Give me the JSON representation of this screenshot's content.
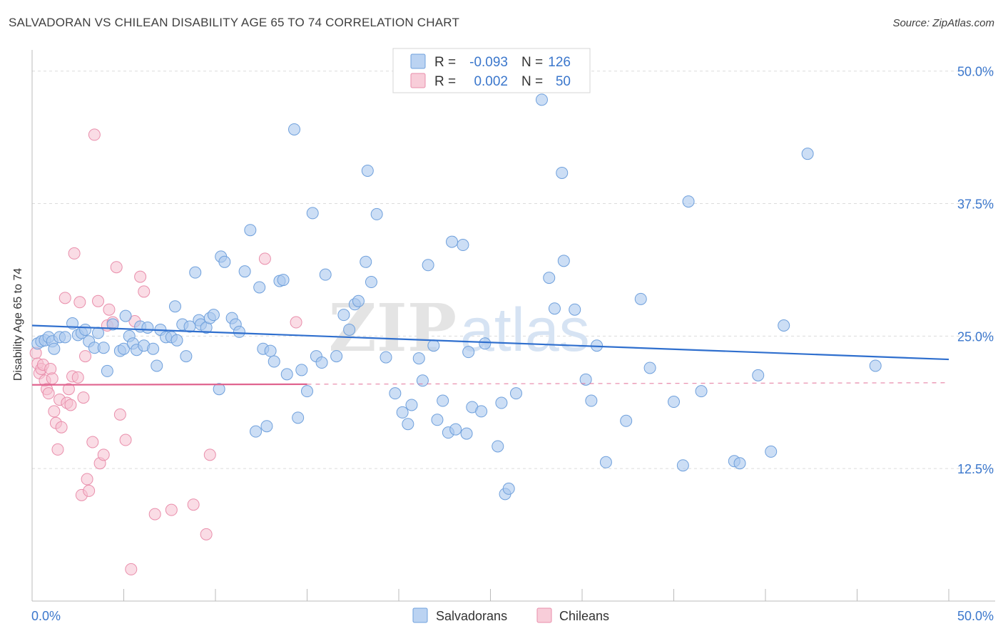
{
  "title": "SALVADORAN VS CHILEAN DISABILITY AGE 65 TO 74 CORRELATION CHART",
  "source": "Source: ZipAtlas.com",
  "watermark": {
    "zip": "ZIP",
    "atlas": "atlas"
  },
  "colors": {
    "salvadoran_fill": "#aac8ef",
    "salvadoran_stroke": "#6fa0dc",
    "salvadoran_line": "#2f6fce",
    "chilean_fill": "#f6c0d0",
    "chilean_stroke": "#e98eab",
    "chilean_line": "#e0648f",
    "axis_text": "#3b77cc"
  },
  "legend": {
    "rows": [
      {
        "r_label": "R =",
        "r_value": "-0.093",
        "n_label": "N =",
        "n_value": "126"
      },
      {
        "r_label": "R =",
        "r_value": "0.002",
        "n_label": "N =",
        "n_value": "50"
      }
    ]
  },
  "bottom_legend": {
    "salvadorans": "Salvadorans",
    "chileans": "Chileans"
  },
  "chart_data": {
    "type": "scatter",
    "title": "SALVADORAN VS CHILEAN DISABILITY AGE 65 TO 74 CORRELATION CHART",
    "xlabel": "",
    "ylabel": "Disability Age 65 to 74",
    "xlim": [
      0,
      50
    ],
    "ylim": [
      0,
      52
    ],
    "x_tick_labels": [
      "0.0%",
      "50.0%"
    ],
    "y_ticks": [
      12.5,
      25.0,
      37.5,
      50.0
    ],
    "y_tick_labels": [
      "12.5%",
      "25.0%",
      "37.5%",
      "50.0%"
    ],
    "grid": true,
    "series": [
      {
        "name": "Salvadorans",
        "r": -0.093,
        "n": 126,
        "trend": {
          "x": [
            0,
            50
          ],
          "y": [
            26.0,
            22.8
          ],
          "dashed_from": null
        },
        "points": [
          [
            0.3,
            24.3
          ],
          [
            0.5,
            24.5
          ],
          [
            0.7,
            24.6
          ],
          [
            0.9,
            24.9
          ],
          [
            1.1,
            24.5
          ],
          [
            1.2,
            23.8
          ],
          [
            1.5,
            24.9
          ],
          [
            1.8,
            24.9
          ],
          [
            2.2,
            26.2
          ],
          [
            2.5,
            25.1
          ],
          [
            2.7,
            25.3
          ],
          [
            2.9,
            25.6
          ],
          [
            3.1,
            24.5
          ],
          [
            3.4,
            23.9
          ],
          [
            3.6,
            25.3
          ],
          [
            3.9,
            23.9
          ],
          [
            4.1,
            21.7
          ],
          [
            4.4,
            26.1
          ],
          [
            4.8,
            23.6
          ],
          [
            5.0,
            23.8
          ],
          [
            5.1,
            26.9
          ],
          [
            5.3,
            25.0
          ],
          [
            5.5,
            24.3
          ],
          [
            5.7,
            23.7
          ],
          [
            5.9,
            25.9
          ],
          [
            6.1,
            24.1
          ],
          [
            6.3,
            25.8
          ],
          [
            6.6,
            23.8
          ],
          [
            6.8,
            22.2
          ],
          [
            7.0,
            25.6
          ],
          [
            7.3,
            24.9
          ],
          [
            7.6,
            24.9
          ],
          [
            7.8,
            27.8
          ],
          [
            7.9,
            24.6
          ],
          [
            8.2,
            26.1
          ],
          [
            8.4,
            23.1
          ],
          [
            8.6,
            25.9
          ],
          [
            8.9,
            31.0
          ],
          [
            9.1,
            26.5
          ],
          [
            9.2,
            26.1
          ],
          [
            9.5,
            25.8
          ],
          [
            9.7,
            26.7
          ],
          [
            9.9,
            27.0
          ],
          [
            10.2,
            20.0
          ],
          [
            10.3,
            32.5
          ],
          [
            10.5,
            32.0
          ],
          [
            10.9,
            26.7
          ],
          [
            11.1,
            26.1
          ],
          [
            11.3,
            25.4
          ],
          [
            11.6,
            31.1
          ],
          [
            11.9,
            35.0
          ],
          [
            12.2,
            16.0
          ],
          [
            12.4,
            29.6
          ],
          [
            12.6,
            23.8
          ],
          [
            12.8,
            16.5
          ],
          [
            13.0,
            23.6
          ],
          [
            13.2,
            22.6
          ],
          [
            13.5,
            30.2
          ],
          [
            13.7,
            30.3
          ],
          [
            13.9,
            21.4
          ],
          [
            14.3,
            44.5
          ],
          [
            14.5,
            17.3
          ],
          [
            14.7,
            21.8
          ],
          [
            15.0,
            19.8
          ],
          [
            15.3,
            36.6
          ],
          [
            15.5,
            23.1
          ],
          [
            15.8,
            22.5
          ],
          [
            16.0,
            30.8
          ],
          [
            16.6,
            23.1
          ],
          [
            17.0,
            27.0
          ],
          [
            17.3,
            25.6
          ],
          [
            17.6,
            28.0
          ],
          [
            17.8,
            28.3
          ],
          [
            18.2,
            32.0
          ],
          [
            18.3,
            40.6
          ],
          [
            18.5,
            30.1
          ],
          [
            18.8,
            36.5
          ],
          [
            19.3,
            23.0
          ],
          [
            19.8,
            19.6
          ],
          [
            20.2,
            17.8
          ],
          [
            20.5,
            16.7
          ],
          [
            20.7,
            18.5
          ],
          [
            21.1,
            22.9
          ],
          [
            21.3,
            20.8
          ],
          [
            21.6,
            31.7
          ],
          [
            21.9,
            24.1
          ],
          [
            22.1,
            17.1
          ],
          [
            22.4,
            18.9
          ],
          [
            22.7,
            15.9
          ],
          [
            22.9,
            33.9
          ],
          [
            23.1,
            16.2
          ],
          [
            23.5,
            33.6
          ],
          [
            23.7,
            15.8
          ],
          [
            23.8,
            23.5
          ],
          [
            24.0,
            18.3
          ],
          [
            24.5,
            17.9
          ],
          [
            24.7,
            24.3
          ],
          [
            25.4,
            14.6
          ],
          [
            25.6,
            18.7
          ],
          [
            25.8,
            10.1
          ],
          [
            26.0,
            10.6
          ],
          [
            26.4,
            19.6
          ],
          [
            27.8,
            47.3
          ],
          [
            28.2,
            30.5
          ],
          [
            28.5,
            27.6
          ],
          [
            28.9,
            40.4
          ],
          [
            29.0,
            32.1
          ],
          [
            29.6,
            27.5
          ],
          [
            30.2,
            20.9
          ],
          [
            30.5,
            18.9
          ],
          [
            30.8,
            24.1
          ],
          [
            31.3,
            13.1
          ],
          [
            32.4,
            17.0
          ],
          [
            33.2,
            28.5
          ],
          [
            33.7,
            22.0
          ],
          [
            35.0,
            18.8
          ],
          [
            35.5,
            12.8
          ],
          [
            35.8,
            37.7
          ],
          [
            36.5,
            19.8
          ],
          [
            38.3,
            13.2
          ],
          [
            38.6,
            13.0
          ],
          [
            39.6,
            21.3
          ],
          [
            40.3,
            14.1
          ],
          [
            41.0,
            26.0
          ],
          [
            42.3,
            42.2
          ],
          [
            46.0,
            22.2
          ]
        ]
      },
      {
        "name": "Chileans",
        "r": 0.002,
        "n": 50,
        "trend": {
          "x": [
            0,
            50
          ],
          "y": [
            20.4,
            20.6
          ],
          "dashed_from": 15
        },
        "points": [
          [
            0.2,
            23.4
          ],
          [
            0.3,
            22.4
          ],
          [
            0.4,
            21.5
          ],
          [
            0.5,
            21.9
          ],
          [
            0.6,
            22.3
          ],
          [
            0.7,
            20.8
          ],
          [
            0.8,
            20.0
          ],
          [
            0.9,
            19.6
          ],
          [
            1.0,
            21.9
          ],
          [
            1.1,
            21.0
          ],
          [
            1.2,
            17.9
          ],
          [
            1.3,
            16.8
          ],
          [
            1.4,
            14.3
          ],
          [
            1.5,
            19.0
          ],
          [
            1.6,
            16.4
          ],
          [
            1.8,
            28.6
          ],
          [
            1.9,
            18.7
          ],
          [
            2.0,
            20.0
          ],
          [
            2.1,
            18.5
          ],
          [
            2.2,
            21.2
          ],
          [
            2.3,
            32.8
          ],
          [
            2.5,
            21.1
          ],
          [
            2.6,
            28.2
          ],
          [
            2.7,
            10.0
          ],
          [
            2.8,
            19.2
          ],
          [
            2.9,
            23.1
          ],
          [
            3.0,
            11.5
          ],
          [
            3.1,
            10.4
          ],
          [
            3.3,
            15.0
          ],
          [
            3.4,
            44.0
          ],
          [
            3.6,
            28.3
          ],
          [
            3.7,
            13.0
          ],
          [
            3.9,
            13.8
          ],
          [
            4.1,
            26.0
          ],
          [
            4.2,
            27.5
          ],
          [
            4.4,
            26.3
          ],
          [
            4.6,
            31.5
          ],
          [
            4.8,
            17.6
          ],
          [
            5.1,
            15.2
          ],
          [
            5.4,
            3.0
          ],
          [
            5.6,
            26.4
          ],
          [
            5.9,
            30.6
          ],
          [
            6.1,
            29.2
          ],
          [
            6.7,
            8.2
          ],
          [
            7.6,
            8.6
          ],
          [
            8.8,
            9.1
          ],
          [
            9.5,
            6.3
          ],
          [
            9.7,
            13.8
          ],
          [
            12.7,
            32.3
          ],
          [
            14.4,
            26.3
          ]
        ]
      }
    ]
  }
}
